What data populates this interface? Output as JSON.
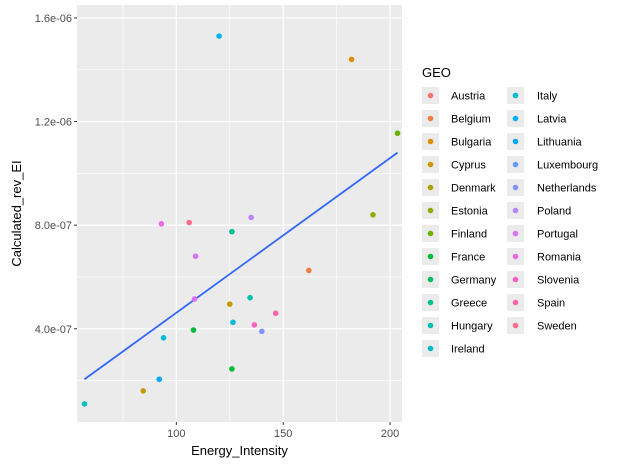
{
  "chart_data": {
    "type": "scatter",
    "xlabel": "Energy_Intensity",
    "ylabel": "Calculated_rev_EI",
    "xlim": [
      53.5,
      205.6
    ],
    "ylim": [
      4e-08,
      1.65e-06
    ],
    "x_ticks": [
      100,
      150,
      200
    ],
    "x_tick_labels": [
      "100",
      "150",
      "200"
    ],
    "y_ticks": [
      4e-07,
      8e-07,
      1.2e-06,
      1.6e-06
    ],
    "y_tick_labels": [
      "4.0e-07",
      "8.0e-07",
      "1.2e-06",
      "1.6e-06"
    ],
    "grid": true,
    "legend": {
      "title": "GEO",
      "placement": "right",
      "columns": 2,
      "entries": [
        {
          "name": "Austria",
          "color": "#F8766D"
        },
        {
          "name": "Belgium",
          "color": "#EE8044"
        },
        {
          "name": "Bulgaria",
          "color": "#DE8C00"
        },
        {
          "name": "Cyprus",
          "color": "#C99800"
        },
        {
          "name": "Denmark",
          "color": "#B0A000"
        },
        {
          "name": "Estonia",
          "color": "#93AA00"
        },
        {
          "name": "Finland",
          "color": "#6BB100"
        },
        {
          "name": "France",
          "color": "#00BA38"
        },
        {
          "name": "Germany",
          "color": "#00BE67"
        },
        {
          "name": "Greece",
          "color": "#00C18B"
        },
        {
          "name": "Hungary",
          "color": "#00C0AF"
        },
        {
          "name": "Ireland",
          "color": "#00BFC4"
        },
        {
          "name": "Italy",
          "color": "#00BCD8"
        },
        {
          "name": "Latvia",
          "color": "#00B4F0"
        },
        {
          "name": "Lithuania",
          "color": "#00A9FF"
        },
        {
          "name": "Luxembourg",
          "color": "#619CFF"
        },
        {
          "name": "Netherlands",
          "color": "#8494FF"
        },
        {
          "name": "Poland",
          "color": "#B983FF"
        },
        {
          "name": "Portugal",
          "color": "#DB72FB"
        },
        {
          "name": "Romania",
          "color": "#EF67EB"
        },
        {
          "name": "Slovenia",
          "color": "#FF61C3"
        },
        {
          "name": "Spain",
          "color": "#FF64A5"
        },
        {
          "name": "Sweden",
          "color": "#FF6C90"
        }
      ]
    },
    "points": [
      {
        "x": 57,
        "y": 1.1e-07,
        "color": "#00BFC4"
      },
      {
        "x": 84.5,
        "y": 1.6e-07,
        "color": "#C99800"
      },
      {
        "x": 92,
        "y": 2.05e-07,
        "color": "#00A9FF"
      },
      {
        "x": 93,
        "y": 8.05e-07,
        "color": "#EF67EB"
      },
      {
        "x": 94,
        "y": 3.65e-07,
        "color": "#00BCD8"
      },
      {
        "x": 106,
        "y": 8.1e-07,
        "color": "#FF6C90"
      },
      {
        "x": 108,
        "y": 3.95e-07,
        "color": "#00BA38"
      },
      {
        "x": 108.5,
        "y": 5.15e-07,
        "color": "#DB72FB"
      },
      {
        "x": 109,
        "y": 6.8e-07,
        "color": "#DB72FB"
      },
      {
        "x": 120,
        "y": 1.53e-06,
        "color": "#00B4F0"
      },
      {
        "x": 125,
        "y": 4.95e-07,
        "color": "#C99800"
      },
      {
        "x": 126,
        "y": 7.75e-07,
        "color": "#00C18B"
      },
      {
        "x": 126,
        "y": 2.45e-07,
        "color": "#00BA38"
      },
      {
        "x": 126.5,
        "y": 4.25e-07,
        "color": "#00BCD8"
      },
      {
        "x": 134.5,
        "y": 5.2e-07,
        "color": "#00C0AF"
      },
      {
        "x": 135,
        "y": 8.3e-07,
        "color": "#B983FF"
      },
      {
        "x": 136.5,
        "y": 4.15e-07,
        "color": "#FF61C3"
      },
      {
        "x": 140,
        "y": 3.9e-07,
        "color": "#8494FF"
      },
      {
        "x": 146.5,
        "y": 4.6e-07,
        "color": "#FF64A5"
      },
      {
        "x": 162,
        "y": 6.25e-07,
        "color": "#EE8044"
      },
      {
        "x": 182,
        "y": 1.44e-06,
        "color": "#DE8C00"
      },
      {
        "x": 192,
        "y": 8.4e-07,
        "color": "#93AA00"
      },
      {
        "x": 203.5,
        "y": 1.155e-06,
        "color": "#6BB100"
      }
    ],
    "trend_line": {
      "color": "#3366FF",
      "x": [
        57,
        203.5
      ],
      "y": [
        2.05e-07,
        1.08e-06
      ]
    }
  }
}
